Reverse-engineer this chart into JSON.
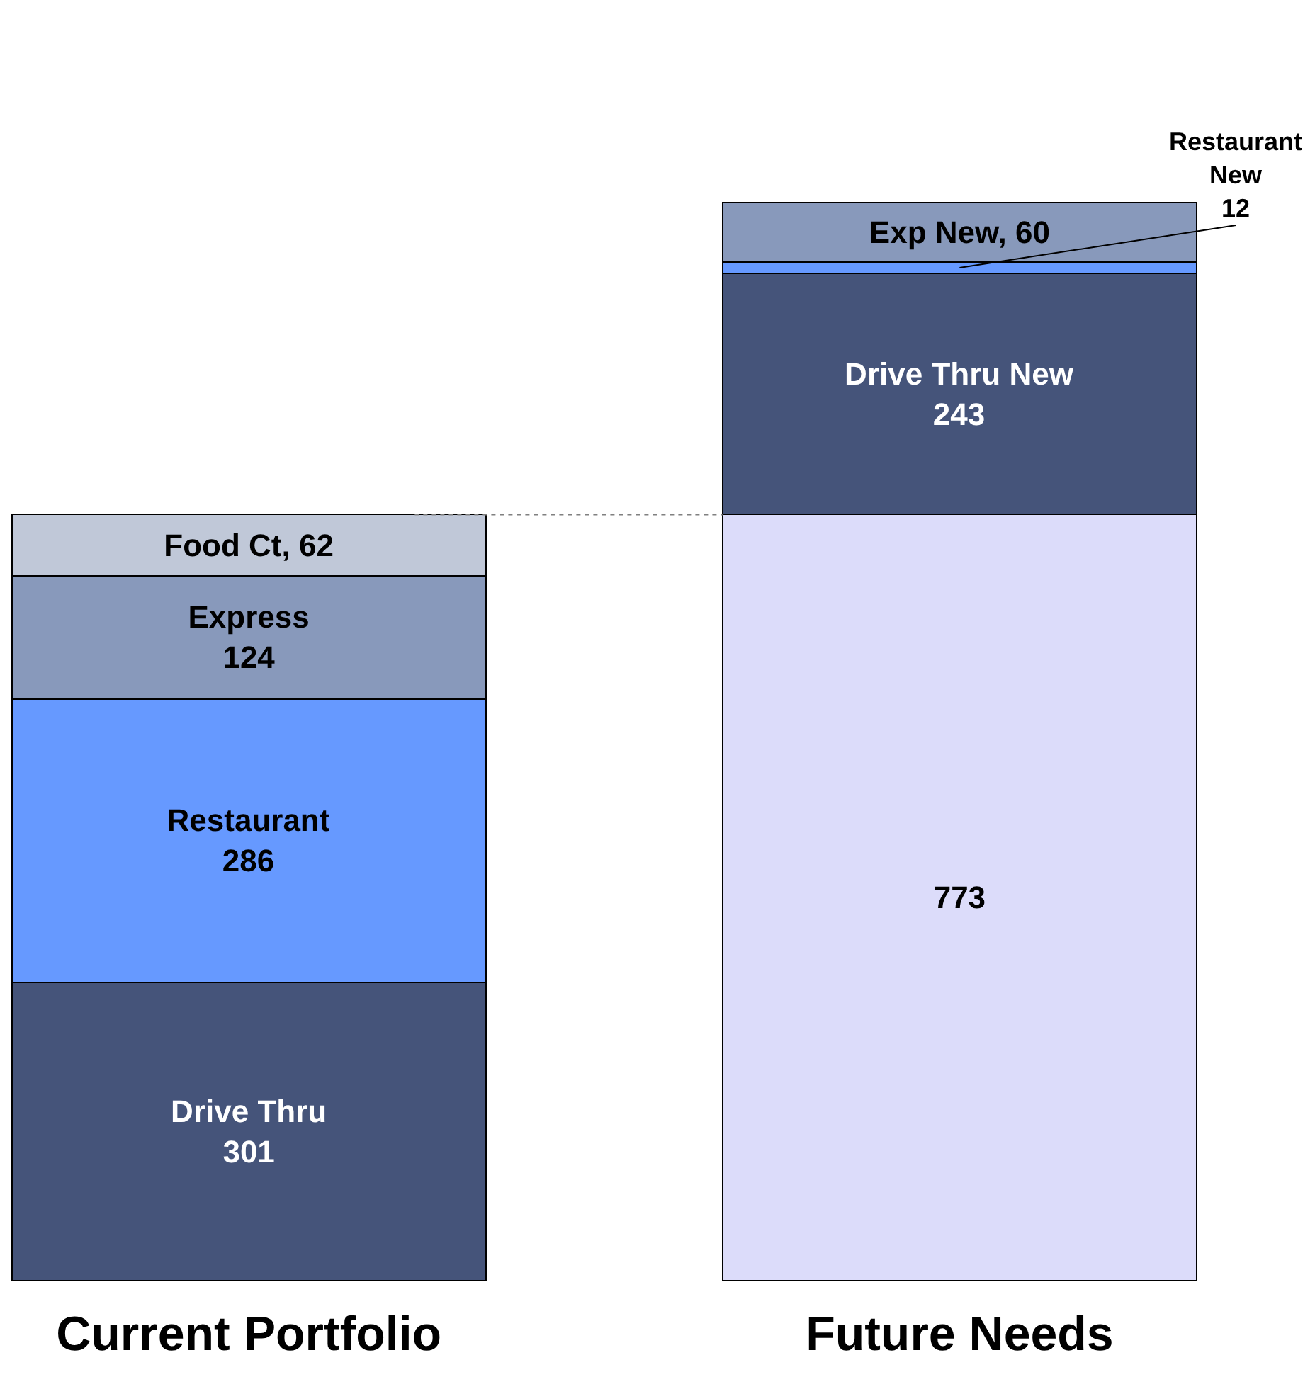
{
  "chart_data": {
    "type": "bar",
    "stacked": true,
    "categories": [
      "Current Portfolio",
      "Future Needs"
    ],
    "series": [
      {
        "color": "#45547a",
        "values": [
          301,
          null
        ],
        "value_labels": [
          "Drive Thru\n301",
          null
        ]
      },
      {
        "color": "#6699ff",
        "values": [
          286,
          null
        ],
        "value_labels": [
          "Restaurant\n286",
          null
        ]
      },
      {
        "color": "#8899bb",
        "values": [
          124,
          null
        ],
        "value_labels": [
          "Express\n124",
          null
        ]
      },
      {
        "color": "#c0c8d8",
        "values": [
          62,
          null
        ],
        "value_labels": [
          "Food Ct, 62",
          null
        ]
      },
      {
        "color": "#dcdcfa",
        "values": [
          null,
          773
        ],
        "value_labels": [
          null,
          "773"
        ]
      },
      {
        "color": "#45547a",
        "values": [
          null,
          243
        ],
        "value_labels": [
          null,
          "Drive Thru New\n243"
        ]
      },
      {
        "color": "#6699ff",
        "values": [
          null,
          12
        ],
        "value_labels": [
          null,
          null
        ]
      },
      {
        "color": "#8899bb",
        "values": [
          null,
          60
        ],
        "value_labels": [
          null,
          "Exp New, 60"
        ]
      }
    ],
    "annotations": [
      {
        "text": "Restaurant\nNew\n12",
        "x": "Future Needs",
        "y": 1022
      }
    ],
    "ref_lines": [
      {
        "axis": "y",
        "value": 773,
        "color": "#808080",
        "line_style": "dotted"
      }
    ]
  }
}
